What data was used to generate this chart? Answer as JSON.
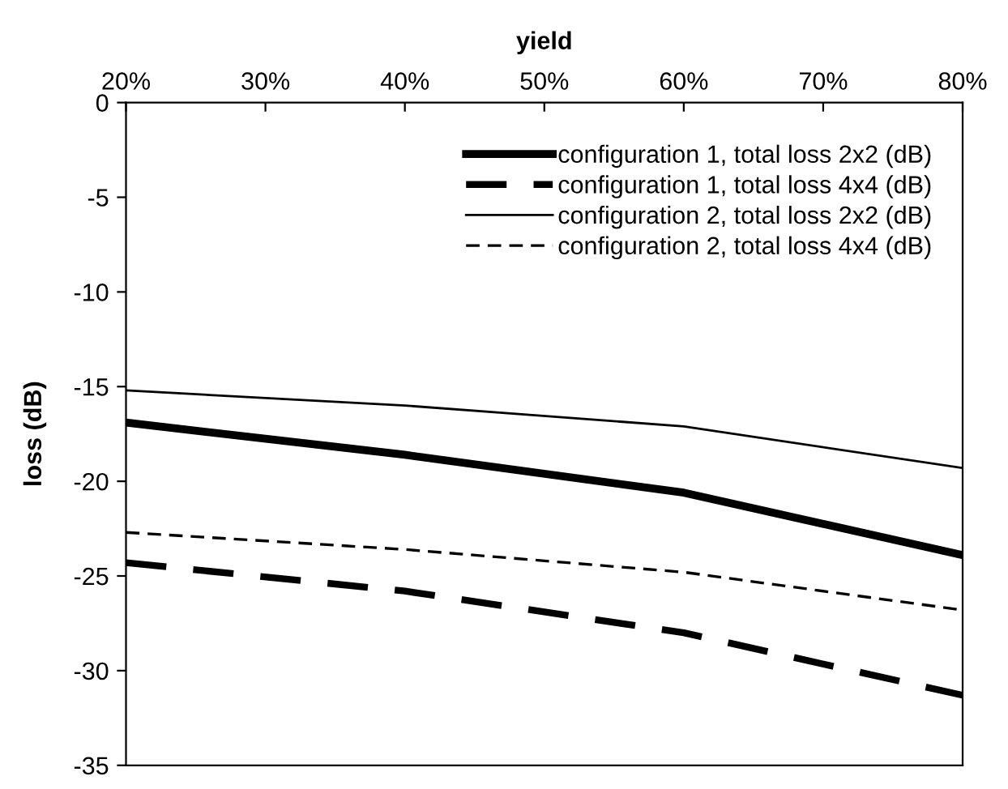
{
  "chart_data": {
    "type": "line",
    "xlabel": "yield",
    "ylabel": "loss (dB)",
    "x": [
      20,
      40,
      60,
      80
    ],
    "series": [
      {
        "name": "configuration 1, total loss 2x2 (dB)",
        "color": "#000000",
        "values": [
          -16.9,
          -18.6,
          -20.6,
          -23.9
        ],
        "line_style": "solid"
      },
      {
        "name": "configuration 1, total loss 4x4 (dB)",
        "color": "#000000",
        "values": [
          -24.3,
          -25.8,
          -28.0,
          -31.3
        ],
        "line_style": "dashed"
      },
      {
        "name": "configuration 2, total loss 2x2 (dB)",
        "color": "#000000",
        "values": [
          -15.2,
          -16.0,
          -17.1,
          -19.3
        ],
        "line_style": "solid"
      },
      {
        "name": "configuration 2, total loss 4x4 (dB)",
        "color": "#000000",
        "values": [
          -22.7,
          -23.6,
          -24.8,
          -26.8
        ],
        "line_style": "dashed"
      }
    ],
    "xlim": [
      20,
      80
    ],
    "xticks": [
      {
        "value": 20,
        "label": "20%"
      },
      {
        "value": 30,
        "label": "30%"
      },
      {
        "value": 40,
        "label": "40%"
      },
      {
        "value": 50,
        "label": "50%"
      },
      {
        "value": 60,
        "label": "60%"
      },
      {
        "value": 70,
        "label": "70%"
      },
      {
        "value": 80,
        "label": "80%"
      }
    ],
    "ylim": [
      -35,
      0
    ],
    "yticks": [
      -35,
      -30,
      -25,
      -20,
      -15,
      -10,
      -5,
      0
    ],
    "grid": false,
    "legend": "top right",
    "marker": "none"
  }
}
